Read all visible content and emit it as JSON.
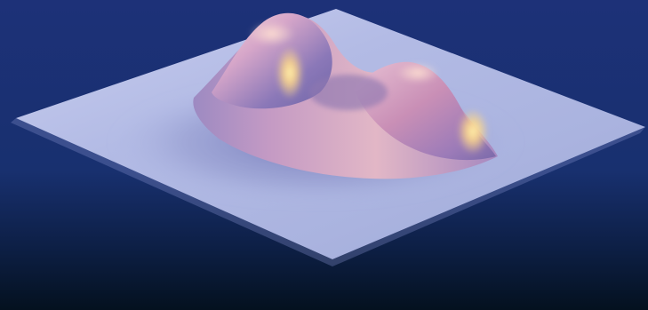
{
  "scene": {
    "subject": "3d-surface-render",
    "colors": {
      "background_top": "#1f3480",
      "background_bottom": "#07172a",
      "plane": "#aeb7e3",
      "plane_shadow": "#8d98cf",
      "surface_dark": "#7d72b4",
      "surface_mid": "#c89ab8",
      "surface_light": "#f1d2c8",
      "highlight": "#ffe08a"
    }
  }
}
